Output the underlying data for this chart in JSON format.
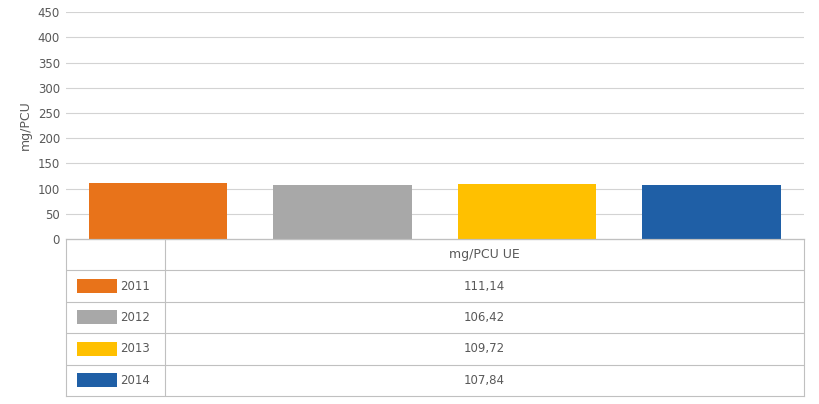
{
  "categories": [
    "2011",
    "2012",
    "2013",
    "2014"
  ],
  "values": [
    111.14,
    106.42,
    109.72,
    107.84
  ],
  "bar_colors": [
    "#E8731A",
    "#A8A8A8",
    "#FFC000",
    "#1F5FA6"
  ],
  "ylabel": "mg/PCU",
  "ylim": [
    0,
    450
  ],
  "yticks": [
    0,
    50,
    100,
    150,
    200,
    250,
    300,
    350,
    400,
    450
  ],
  "table_header": "mg/PCU UE",
  "table_values": [
    "111,14",
    "106,42",
    "109,72",
    "107,84"
  ],
  "background_color": "#ffffff",
  "grid_color": "#d3d3d3",
  "spine_color": "#c0c0c0",
  "text_color": "#595959"
}
